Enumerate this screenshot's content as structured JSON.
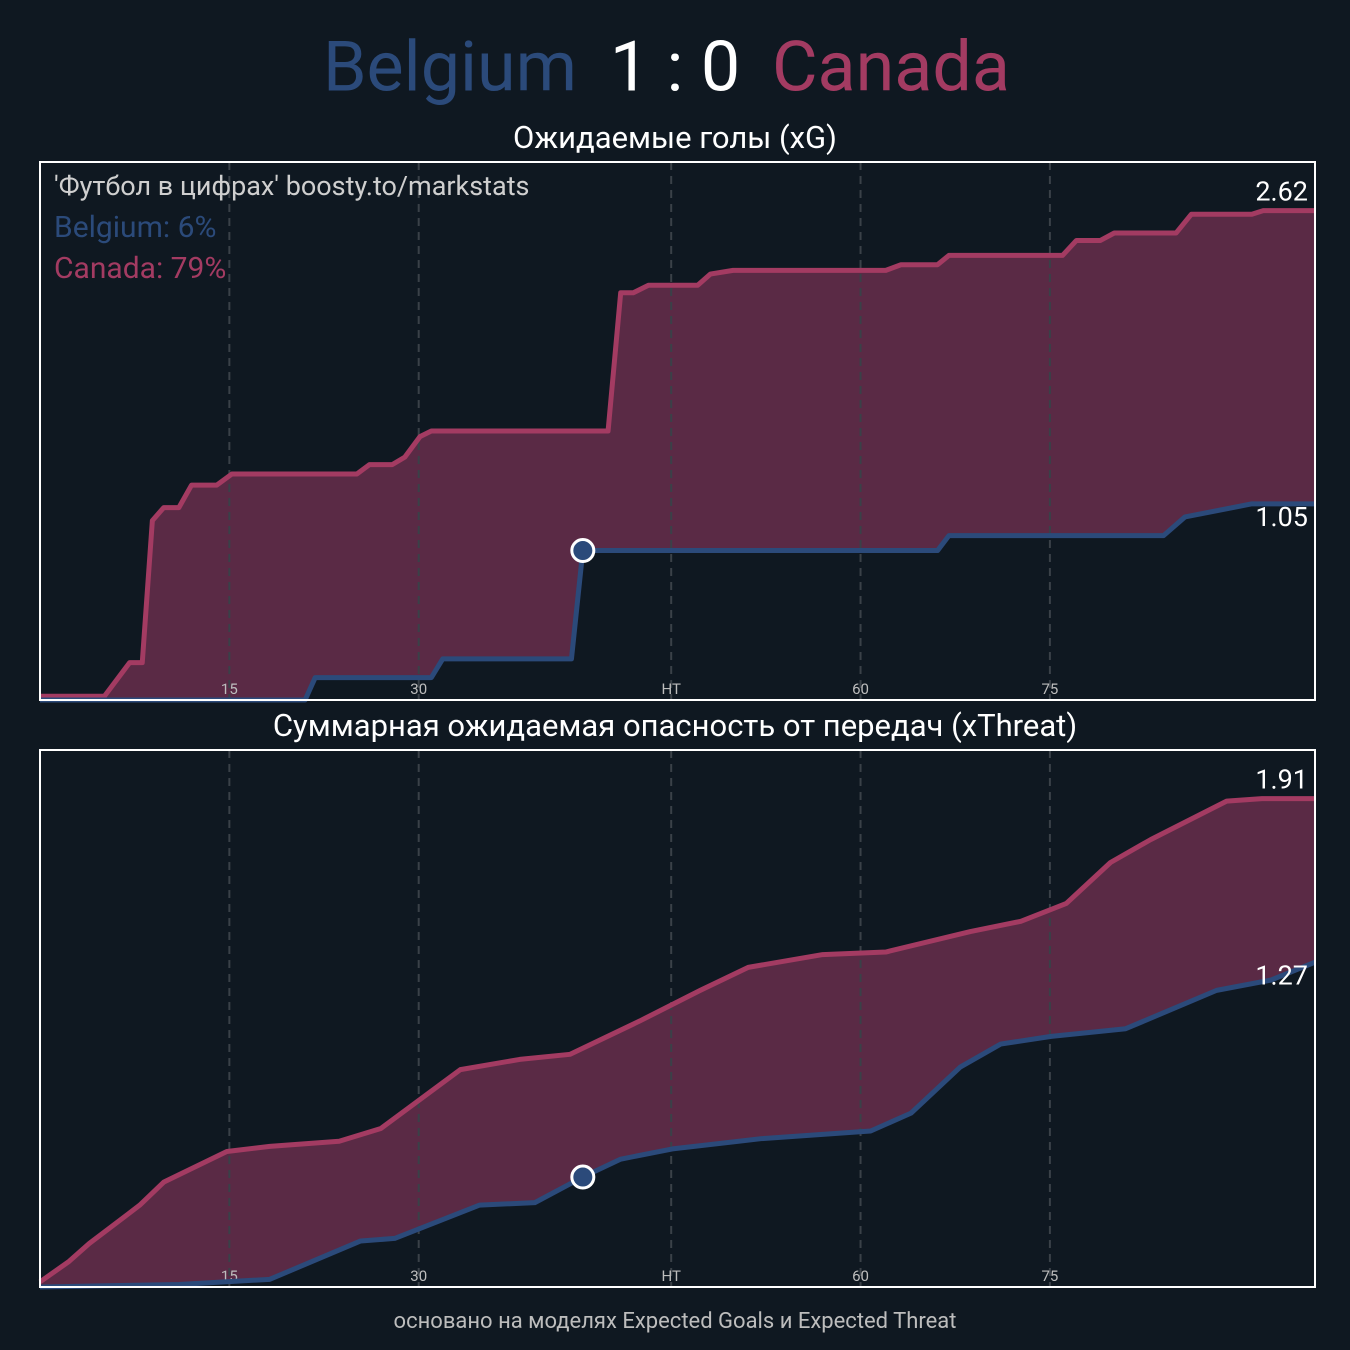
{
  "header": {
    "home": "Belgium",
    "score": "1 : 0",
    "away": "Canada",
    "home_color": "#2b4a7a",
    "away_color": "#a33b62"
  },
  "footer": "основано на моделях Expected Goals и Expected Threat",
  "chart_data": [
    {
      "type": "line",
      "title": "Ожидаемые голы (xG)",
      "xlim": [
        0,
        101
      ],
      "xticks": [
        15,
        30,
        {
          "value": 50,
          "label": "HT"
        },
        {
          "value": 65,
          "label": "60"
        },
        {
          "value": 80,
          "label": "75"
        }
      ],
      "ylim": [
        0,
        2.88
      ],
      "grid": true,
      "annotations": [
        {
          "text": "'Футбол в цифрах' boosty.to/markstats",
          "color": "#cfcfcf"
        },
        {
          "text": "Belgium: 6%",
          "color": "#2b4a7a"
        },
        {
          "text": "Canada: 79%",
          "color": "#a33b62"
        }
      ],
      "series": [
        {
          "name": "Canada",
          "color": "#a33b62",
          "x": [
            0,
            5.1,
            7.1,
            8.1,
            8.9,
            9.8,
            11,
            12,
            14,
            15.2,
            25.1,
            26.1,
            27.9,
            28.9,
            30.1,
            31,
            45,
            46,
            47,
            48.2,
            52.1,
            53.1,
            54.9,
            67,
            68.2,
            71.1,
            72,
            81,
            82.1,
            84,
            85.1,
            90,
            91.2,
            96,
            96.9,
            101
          ],
          "values": [
            0.02,
            0.02,
            0.2,
            0.2,
            0.96,
            1.03,
            1.03,
            1.15,
            1.15,
            1.21,
            1.21,
            1.26,
            1.26,
            1.3,
            1.41,
            1.44,
            1.44,
            2.18,
            2.18,
            2.22,
            2.22,
            2.28,
            2.3,
            2.3,
            2.33,
            2.33,
            2.38,
            2.38,
            2.46,
            2.46,
            2.5,
            2.5,
            2.6,
            2.6,
            2.62,
            2.62
          ],
          "last_label": "2.62"
        },
        {
          "name": "Belgium",
          "color": "#2b4a7a",
          "x": [
            0,
            21,
            21.8,
            31,
            31.9,
            42.1,
            43,
            71.1,
            72,
            89,
            90.7,
            96,
            101
          ],
          "values": [
            0,
            0,
            0.12,
            0.12,
            0.22,
            0.22,
            0.8,
            0.8,
            0.88,
            0.88,
            0.98,
            1.05,
            1.05
          ],
          "last_label": "1.05"
        }
      ],
      "markers": [
        {
          "x": 43,
          "y": 0.8,
          "color": "#2b4a7a"
        }
      ]
    },
    {
      "type": "line",
      "title": "Суммарная ожидаемая опасность от передач (xThreat)",
      "xlim": [
        0,
        101
      ],
      "xticks": [
        15,
        30,
        {
          "value": 50,
          "label": "HT"
        },
        {
          "value": 65,
          "label": "60"
        },
        {
          "value": 80,
          "label": "75"
        }
      ],
      "ylim": [
        0,
        2.1
      ],
      "grid": true,
      "series": [
        {
          "name": "Canada",
          "color": "#a33b62",
          "x": [
            0,
            2.3,
            3.9,
            7.9,
            9.8,
            14.8,
            18.2,
            23.7,
            27,
            33.3,
            38,
            42,
            47.5,
            52.3,
            56.1,
            62,
            67,
            73.7,
            77.7,
            81.3,
            84.8,
            88,
            94,
            96.8,
            101
          ],
          "values": [
            0.02,
            0.1,
            0.17,
            0.32,
            0.41,
            0.53,
            0.55,
            0.57,
            0.62,
            0.85,
            0.89,
            0.91,
            1.04,
            1.16,
            1.25,
            1.3,
            1.31,
            1.39,
            1.43,
            1.5,
            1.66,
            1.75,
            1.9,
            1.91,
            1.91
          ],
          "last_label": "1.91"
        },
        {
          "name": "Belgium",
          "color": "#2b4a7a",
          "x": [
            0,
            11,
            18.2,
            25.4,
            28.1,
            34.8,
            39.2,
            43,
            46,
            50.1,
            57.1,
            65.8,
            69,
            72.9,
            76.1,
            80.1,
            86,
            93.2,
            97.5,
            101
          ],
          "values": [
            0,
            0.01,
            0.03,
            0.18,
            0.19,
            0.32,
            0.33,
            0.43,
            0.5,
            0.54,
            0.58,
            0.61,
            0.68,
            0.86,
            0.95,
            0.98,
            1.01,
            1.16,
            1.2,
            1.27
          ],
          "last_label": "1.27"
        }
      ],
      "markers": [
        {
          "x": 43,
          "y": 0.43,
          "color": "#2b4a7a"
        }
      ]
    }
  ]
}
